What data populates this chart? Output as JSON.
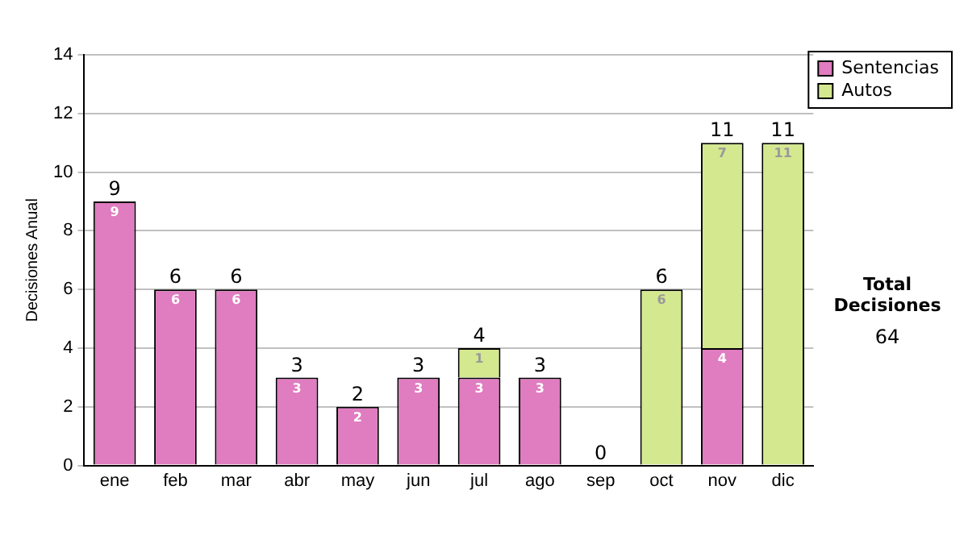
{
  "chart_data": {
    "type": "bar",
    "stacked": true,
    "ylabel": "Decisiones Anual",
    "categories": [
      "ene",
      "feb",
      "mar",
      "abr",
      "may",
      "jun",
      "jul",
      "ago",
      "sep",
      "oct",
      "nov",
      "dic"
    ],
    "series": [
      {
        "name": "Sentencias",
        "color": "#e07cc0",
        "values": [
          9,
          6,
          6,
          3,
          2,
          3,
          3,
          3,
          0,
          0,
          4,
          0
        ],
        "value_labels": [
          "9",
          "6",
          "6",
          "3",
          "2",
          "3",
          "3",
          "3",
          null,
          null,
          "4",
          null
        ]
      },
      {
        "name": "Autos",
        "color": "#d4e890",
        "values": [
          0,
          0,
          0,
          0,
          0,
          0,
          1,
          0,
          0,
          6,
          7,
          11
        ],
        "value_labels": [
          null,
          null,
          null,
          null,
          null,
          null,
          "1",
          null,
          null,
          "6",
          "7",
          "11"
        ]
      }
    ],
    "totals": [
      "9",
      "6",
      "6",
      "3",
      "2",
      "3",
      "4",
      "3",
      "0",
      "6",
      "11",
      "11"
    ],
    "ylim": [
      0,
      14
    ],
    "yticks": [
      0,
      2,
      4,
      6,
      8,
      10,
      12,
      14
    ],
    "grid": "y",
    "legend": "right",
    "annotations": [
      "Total Decisiones",
      "64"
    ]
  }
}
